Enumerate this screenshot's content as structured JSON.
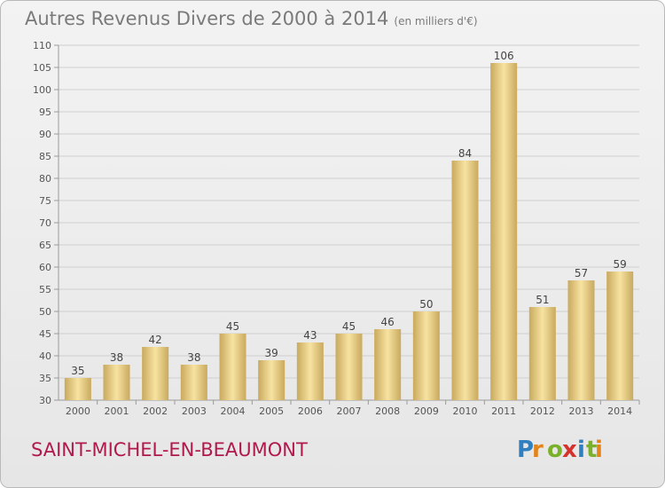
{
  "header": {
    "title": "Autres Revenus Divers de 2000 à 2014",
    "subtitle": "(en milliers d'€)"
  },
  "footer": {
    "commune": "SAINT-MICHEL-EN-BEAUMONT",
    "logo_text": "Proxiti"
  },
  "colors": {
    "bar_light": "#f7e3a1",
    "bar_dark": "#c9a95e",
    "commune": "#b0194a",
    "grid": "#cfcfcf"
  },
  "chart_data": {
    "type": "bar",
    "categories": [
      "2000",
      "2001",
      "2002",
      "2003",
      "2004",
      "2005",
      "2006",
      "2007",
      "2008",
      "2009",
      "2010",
      "2011",
      "2012",
      "2013",
      "2014"
    ],
    "values": [
      35,
      38,
      42,
      38,
      45,
      39,
      43,
      45,
      46,
      50,
      84,
      106,
      51,
      57,
      59
    ],
    "ylim": [
      30,
      110
    ],
    "yticks": [
      30,
      35,
      40,
      45,
      50,
      55,
      60,
      65,
      70,
      75,
      80,
      85,
      90,
      95,
      100,
      105,
      110
    ],
    "grid": true,
    "legend": "none"
  }
}
